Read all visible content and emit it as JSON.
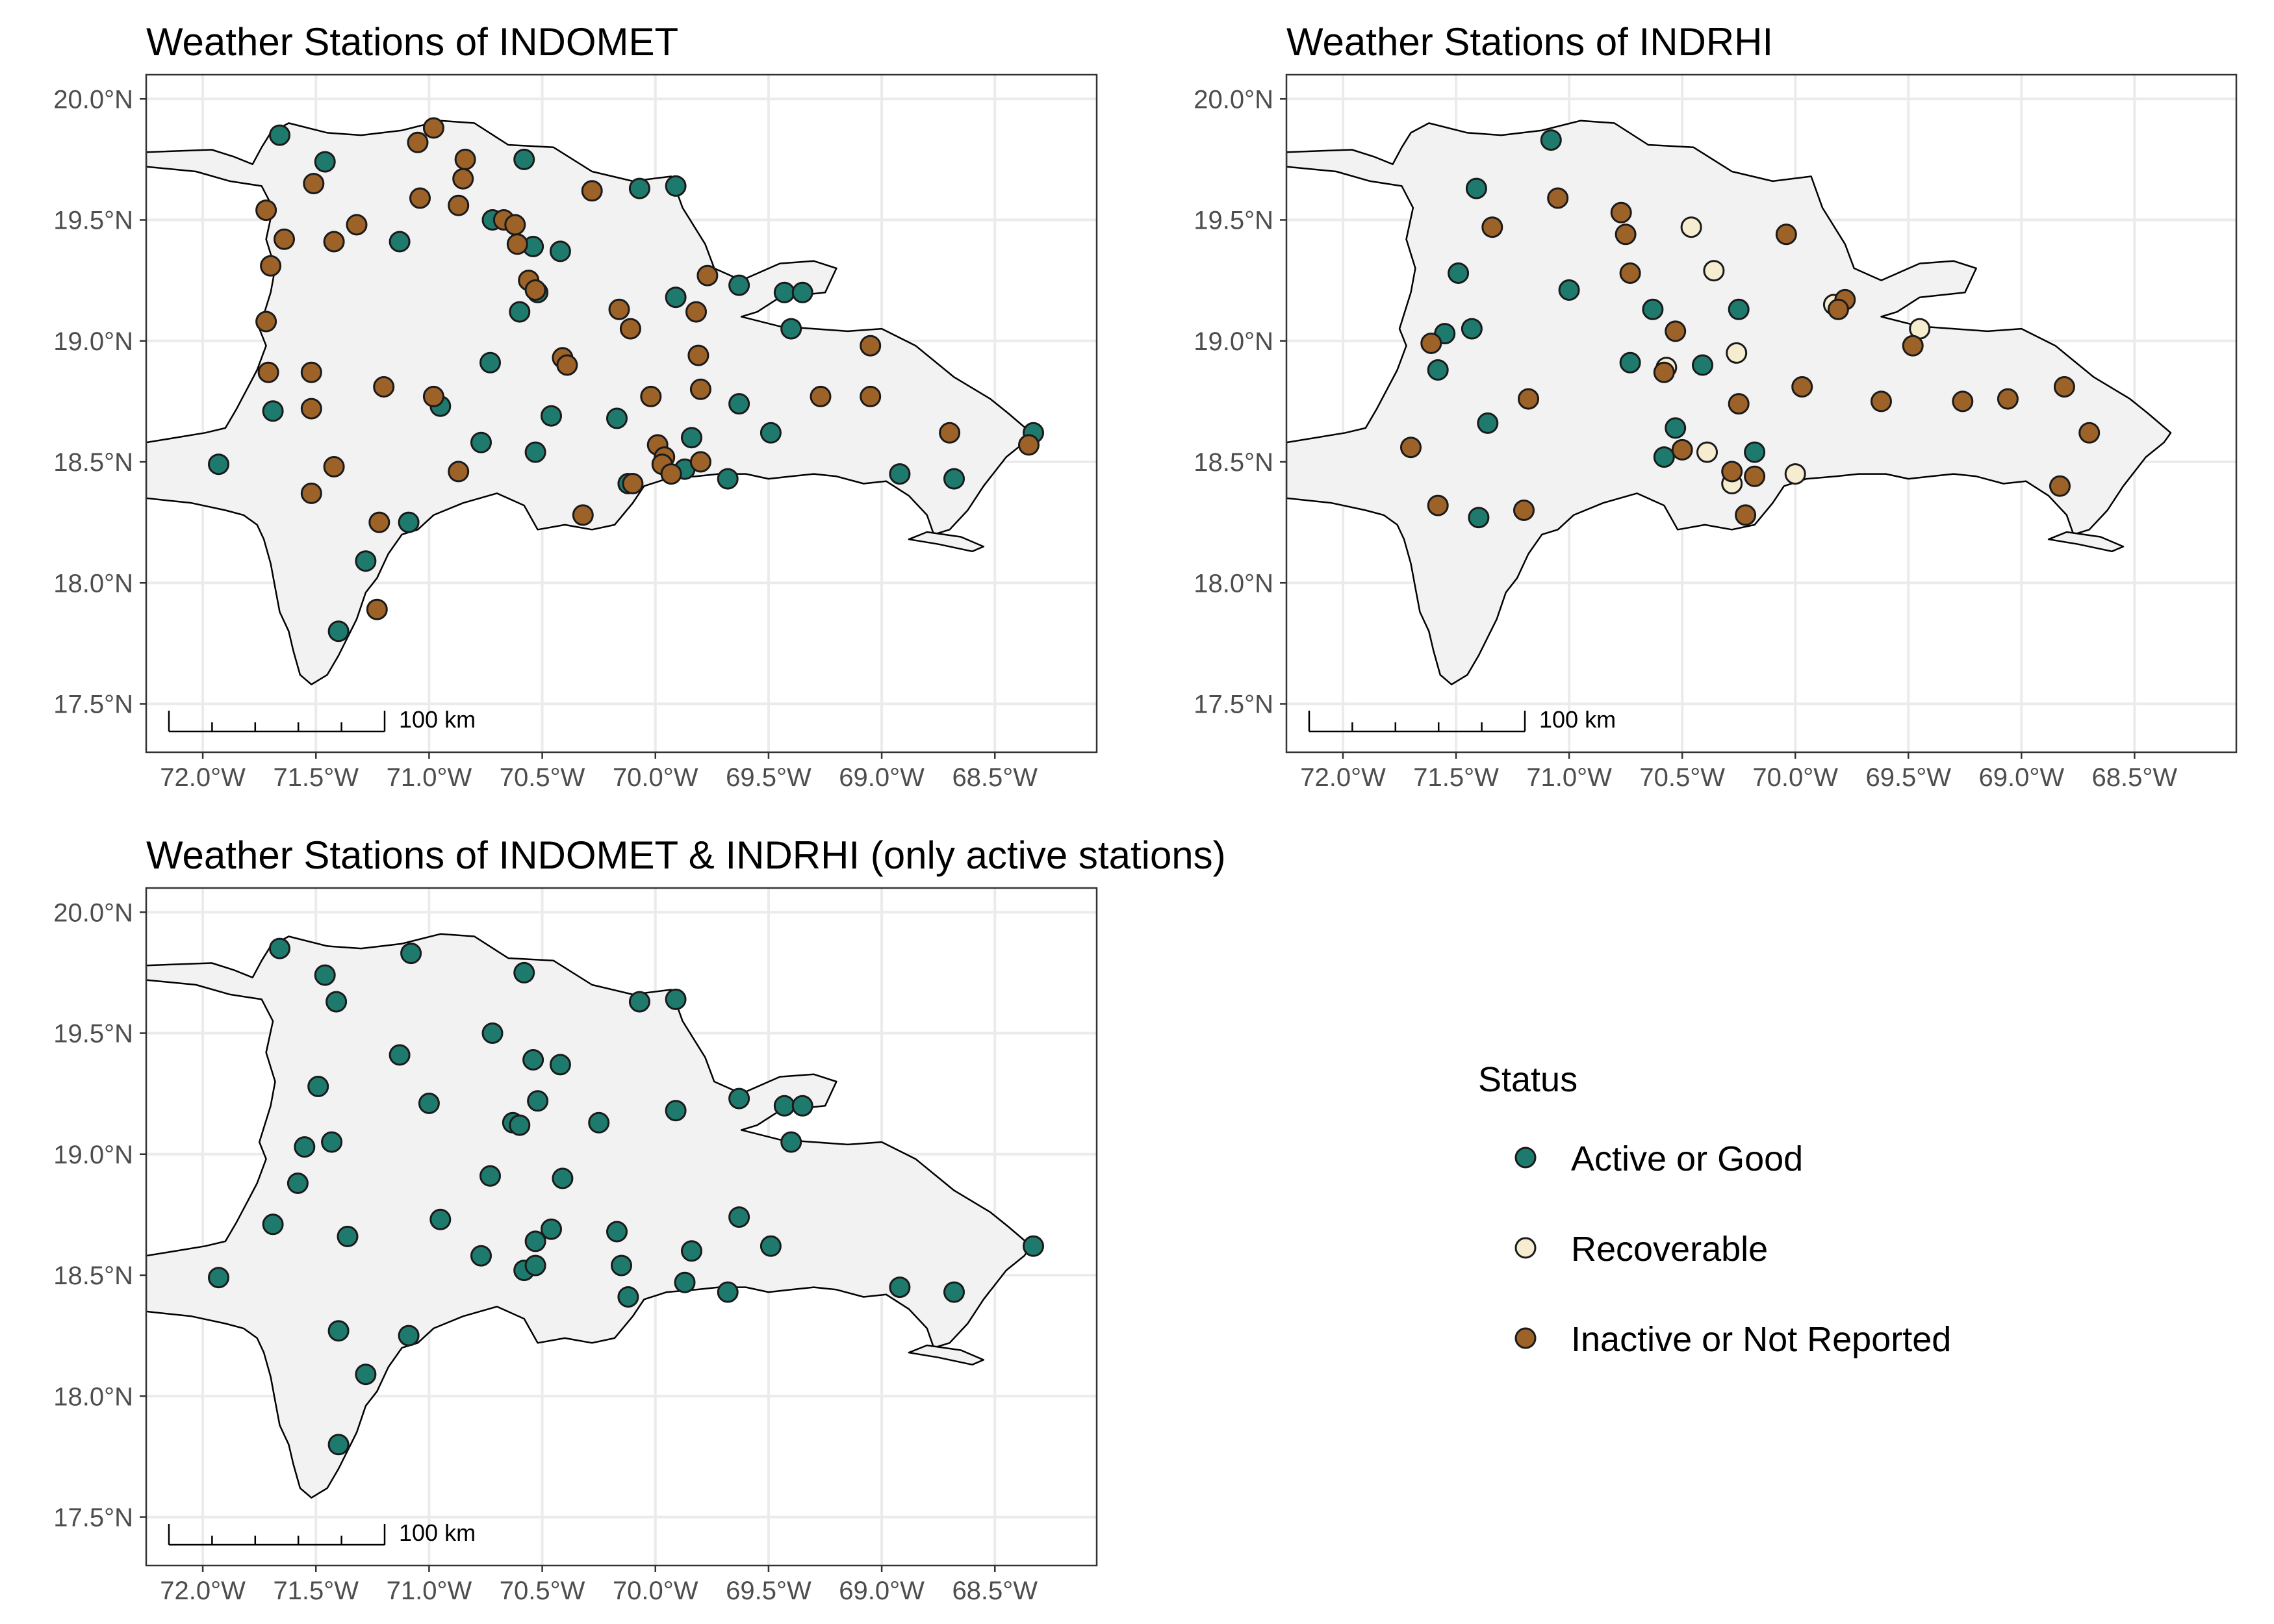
{
  "figure": {
    "legend": {
      "title": "Status",
      "entries": [
        {
          "key": "active",
          "label": "Active or Good",
          "color": "#1f7a6e"
        },
        {
          "key": "recoverable",
          "label": "Recoverable",
          "color": "#f6edd0"
        },
        {
          "key": "inactive",
          "label": "Inactive or Not Reported",
          "color": "#9c6228"
        }
      ]
    },
    "scalebar_label": "100 km"
  },
  "chart_data": [
    {
      "type": "scatter",
      "title": "Weather Stations of INDOMET",
      "xlim": [
        -72.25,
        -68.05
      ],
      "ylim": [
        17.3,
        20.1
      ],
      "x_ticks": [
        "72.0°W",
        "71.5°W",
        "71.0°W",
        "70.5°W",
        "70.0°W",
        "69.5°W",
        "69.0°W",
        "68.5°W"
      ],
      "y_ticks": [
        "17.5°N",
        "18.0°N",
        "18.5°N",
        "19.0°N",
        "19.5°N",
        "20.0°N"
      ],
      "series": [
        {
          "key": "active",
          "points": [
            [
              -71.66,
              19.85
            ],
            [
              -71.46,
              19.74
            ],
            [
              -71.13,
              19.41
            ],
            [
              -70.72,
              19.5
            ],
            [
              -70.58,
              19.75
            ],
            [
              -70.54,
              19.39
            ],
            [
              -70.42,
              19.37
            ],
            [
              -70.6,
              19.12
            ],
            [
              -70.52,
              19.2
            ],
            [
              -70.73,
              18.91
            ],
            [
              -70.95,
              18.73
            ],
            [
              -70.77,
              18.58
            ],
            [
              -70.53,
              18.54
            ],
            [
              -70.46,
              18.69
            ],
            [
              -70.17,
              18.68
            ],
            [
              -70.12,
              18.41
            ],
            [
              -70.07,
              19.63
            ],
            [
              -69.91,
              19.64
            ],
            [
              -69.91,
              19.18
            ],
            [
              -69.63,
              19.23
            ],
            [
              -69.43,
              19.2
            ],
            [
              -69.35,
              19.2
            ],
            [
              -69.4,
              19.05
            ],
            [
              -69.63,
              18.74
            ],
            [
              -69.49,
              18.62
            ],
            [
              -69.84,
              18.6
            ],
            [
              -69.87,
              18.47
            ],
            [
              -69.68,
              18.43
            ],
            [
              -68.92,
              18.45
            ],
            [
              -68.68,
              18.43
            ],
            [
              -68.33,
              18.62
            ],
            [
              -71.69,
              18.71
            ],
            [
              -71.93,
              18.49
            ],
            [
              -71.09,
              18.25
            ],
            [
              -71.28,
              18.09
            ],
            [
              -71.4,
              17.8
            ]
          ]
        },
        {
          "key": "inactive",
          "points": [
            [
              -71.05,
              19.82
            ],
            [
              -70.98,
              19.88
            ],
            [
              -70.84,
              19.75
            ],
            [
              -71.51,
              19.65
            ],
            [
              -70.85,
              19.67
            ],
            [
              -71.04,
              19.59
            ],
            [
              -70.87,
              19.56
            ],
            [
              -71.72,
              19.54
            ],
            [
              -71.64,
              19.42
            ],
            [
              -71.42,
              19.41
            ],
            [
              -71.32,
              19.48
            ],
            [
              -70.67,
              19.5
            ],
            [
              -70.62,
              19.48
            ],
            [
              -70.61,
              19.4
            ],
            [
              -70.28,
              19.62
            ],
            [
              -71.7,
              19.31
            ],
            [
              -69.77,
              19.27
            ],
            [
              -70.56,
              19.25
            ],
            [
              -70.53,
              19.21
            ],
            [
              -70.16,
              19.13
            ],
            [
              -70.11,
              19.05
            ],
            [
              -69.82,
              19.12
            ],
            [
              -71.72,
              19.08
            ],
            [
              -71.71,
              18.87
            ],
            [
              -71.52,
              18.87
            ],
            [
              -71.2,
              18.81
            ],
            [
              -70.98,
              18.77
            ],
            [
              -70.41,
              18.93
            ],
            [
              -70.39,
              18.9
            ],
            [
              -70.02,
              18.77
            ],
            [
              -69.81,
              18.94
            ],
            [
              -69.8,
              18.8
            ],
            [
              -69.27,
              18.77
            ],
            [
              -69.05,
              18.77
            ],
            [
              -69.05,
              18.98
            ],
            [
              -71.52,
              18.72
            ],
            [
              -71.42,
              18.48
            ],
            [
              -71.52,
              18.37
            ],
            [
              -70.87,
              18.46
            ],
            [
              -70.32,
              18.28
            ],
            [
              -70.1,
              18.41
            ],
            [
              -69.99,
              18.57
            ],
            [
              -69.96,
              18.52
            ],
            [
              -69.97,
              18.49
            ],
            [
              -69.93,
              18.45
            ],
            [
              -69.8,
              18.5
            ],
            [
              -71.22,
              18.25
            ],
            [
              -71.23,
              17.89
            ],
            [
              -68.7,
              18.62
            ],
            [
              -68.35,
              18.57
            ]
          ]
        }
      ]
    },
    {
      "type": "scatter",
      "title": "Weather Stations of INDRHI",
      "xlim": [
        -72.25,
        -68.05
      ],
      "ylim": [
        17.3,
        20.1
      ],
      "x_ticks": [
        "72.0°W",
        "71.5°W",
        "71.0°W",
        "70.5°W",
        "70.0°W",
        "69.5°W",
        "69.0°W",
        "68.5°W"
      ],
      "y_ticks": [
        "17.5°N",
        "18.0°N",
        "18.5°N",
        "19.0°N",
        "19.5°N",
        "20.0°N"
      ],
      "series": [
        {
          "key": "active",
          "points": [
            [
              -71.08,
              19.83
            ],
            [
              -71.41,
              19.63
            ],
            [
              -71.49,
              19.28
            ],
            [
              -71.0,
              19.21
            ],
            [
              -71.43,
              19.05
            ],
            [
              -71.55,
              19.03
            ],
            [
              -71.58,
              18.88
            ],
            [
              -71.36,
              18.66
            ],
            [
              -71.4,
              18.27
            ],
            [
              -70.63,
              19.13
            ],
            [
              -70.73,
              18.91
            ],
            [
              -70.41,
              18.9
            ],
            [
              -70.25,
              19.13
            ],
            [
              -70.53,
              18.64
            ],
            [
              -70.58,
              18.52
            ],
            [
              -70.18,
              18.54
            ]
          ]
        },
        {
          "key": "recoverable",
          "points": [
            [
              -70.46,
              19.47
            ],
            [
              -70.36,
              19.29
            ],
            [
              -70.26,
              18.95
            ],
            [
              -70.57,
              18.89
            ],
            [
              -70.39,
              18.54
            ],
            [
              -70.28,
              18.41
            ],
            [
              -70.0,
              18.45
            ],
            [
              -69.83,
              19.15
            ],
            [
              -69.45,
              19.05
            ]
          ]
        },
        {
          "key": "inactive",
          "points": [
            [
              -71.05,
              19.59
            ],
            [
              -71.34,
              19.47
            ],
            [
              -70.77,
              19.53
            ],
            [
              -70.75,
              19.44
            ],
            [
              -70.73,
              19.28
            ],
            [
              -70.04,
              19.44
            ],
            [
              -71.61,
              18.99
            ],
            [
              -70.53,
              19.04
            ],
            [
              -69.78,
              19.17
            ],
            [
              -69.81,
              19.13
            ],
            [
              -71.18,
              18.76
            ],
            [
              -70.58,
              18.87
            ],
            [
              -70.25,
              18.74
            ],
            [
              -69.97,
              18.81
            ],
            [
              -69.62,
              18.75
            ],
            [
              -69.48,
              18.98
            ],
            [
              -69.26,
              18.75
            ],
            [
              -69.06,
              18.76
            ],
            [
              -68.81,
              18.81
            ],
            [
              -71.7,
              18.56
            ],
            [
              -71.58,
              18.32
            ],
            [
              -71.2,
              18.3
            ],
            [
              -70.5,
              18.55
            ],
            [
              -70.28,
              18.46
            ],
            [
              -70.18,
              18.44
            ],
            [
              -70.22,
              18.28
            ],
            [
              -68.7,
              18.62
            ],
            [
              -68.83,
              18.4
            ]
          ]
        }
      ]
    },
    {
      "type": "scatter",
      "title": "Weather Stations of INDOMET & INDRHI (only active stations)",
      "xlim": [
        -72.25,
        -68.05
      ],
      "ylim": [
        17.3,
        20.1
      ],
      "x_ticks": [
        "72.0°W",
        "71.5°W",
        "71.0°W",
        "70.5°W",
        "70.0°W",
        "69.5°W",
        "69.0°W",
        "68.5°W"
      ],
      "y_ticks": [
        "17.5°N",
        "18.0°N",
        "18.5°N",
        "19.0°N",
        "19.5°N",
        "20.0°N"
      ],
      "series": [
        {
          "key": "active",
          "points": [
            [
              -71.66,
              19.85
            ],
            [
              -71.08,
              19.83
            ],
            [
              -71.46,
              19.74
            ],
            [
              -71.41,
              19.63
            ],
            [
              -71.13,
              19.41
            ],
            [
              -70.72,
              19.5
            ],
            [
              -70.58,
              19.75
            ],
            [
              -70.54,
              19.39
            ],
            [
              -70.42,
              19.37
            ],
            [
              -71.49,
              19.28
            ],
            [
              -71.0,
              19.21
            ],
            [
              -70.63,
              19.13
            ],
            [
              -70.6,
              19.12
            ],
            [
              -70.52,
              19.22
            ],
            [
              -70.25,
              19.13
            ],
            [
              -71.43,
              19.05
            ],
            [
              -71.55,
              19.03
            ],
            [
              -71.58,
              18.88
            ],
            [
              -70.73,
              18.91
            ],
            [
              -70.41,
              18.9
            ],
            [
              -71.36,
              18.66
            ],
            [
              -70.95,
              18.73
            ],
            [
              -70.77,
              18.58
            ],
            [
              -70.53,
              18.64
            ],
            [
              -70.46,
              18.69
            ],
            [
              -70.58,
              18.52
            ],
            [
              -70.53,
              18.54
            ],
            [
              -70.17,
              18.68
            ],
            [
              -70.15,
              18.54
            ],
            [
              -70.12,
              18.41
            ],
            [
              -70.07,
              19.63
            ],
            [
              -69.91,
              19.64
            ],
            [
              -69.91,
              19.18
            ],
            [
              -69.63,
              19.23
            ],
            [
              -69.43,
              19.2
            ],
            [
              -69.35,
              19.2
            ],
            [
              -69.4,
              19.05
            ],
            [
              -69.63,
              18.74
            ],
            [
              -69.49,
              18.62
            ],
            [
              -69.84,
              18.6
            ],
            [
              -69.87,
              18.47
            ],
            [
              -69.68,
              18.43
            ],
            [
              -68.92,
              18.45
            ],
            [
              -68.68,
              18.43
            ],
            [
              -68.33,
              18.62
            ],
            [
              -71.69,
              18.71
            ],
            [
              -71.93,
              18.49
            ],
            [
              -71.4,
              18.27
            ],
            [
              -71.09,
              18.25
            ],
            [
              -71.28,
              18.09
            ],
            [
              -71.4,
              17.8
            ]
          ]
        }
      ]
    }
  ]
}
